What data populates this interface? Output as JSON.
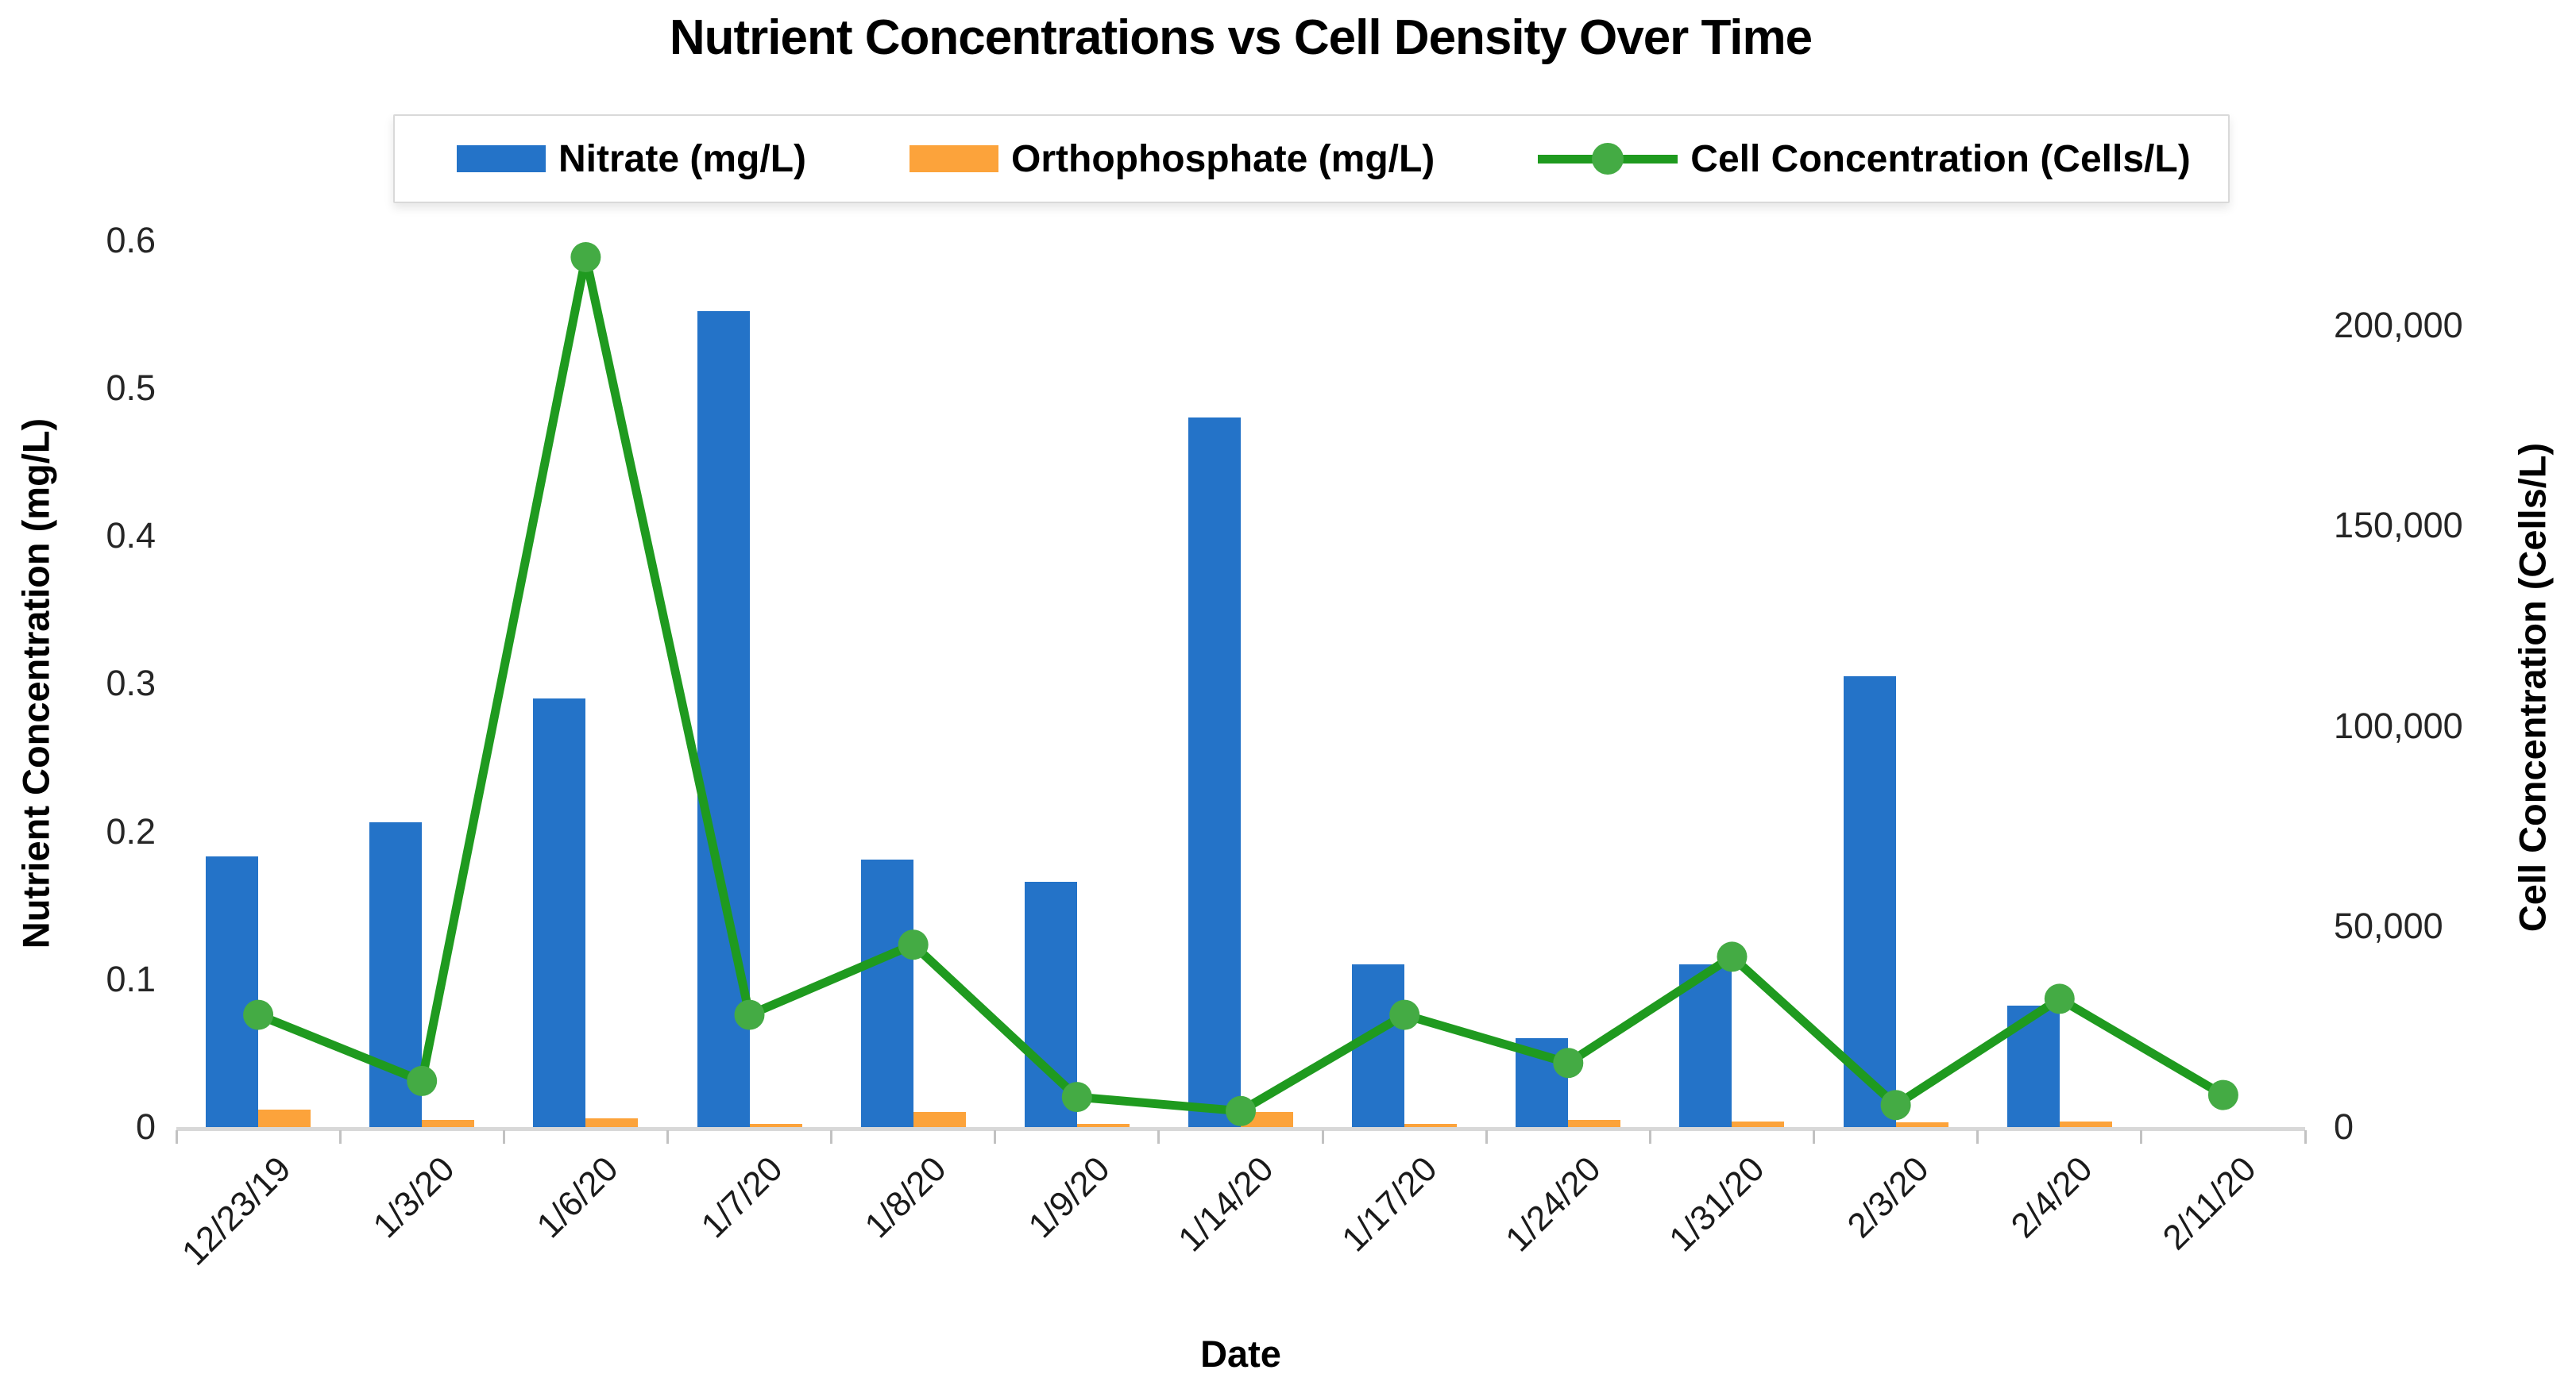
{
  "chart_data": {
    "type": "bar",
    "subtype": "dual-axis-combo-bar-line",
    "title": "Nutrient Concentrations vs Cell Density Over Time",
    "xlabel": "Date",
    "ylabel_left": "Nutrient Concentration (mg/L)",
    "ylabel_right": "Cell Concentration (Cells/L)",
    "categories": [
      "12/23/19",
      "1/3/20",
      "1/6/20",
      "1/7/20",
      "1/8/20",
      "1/9/20",
      "1/14/20",
      "1/17/20",
      "1/24/20",
      "1/31/20",
      "2/3/20",
      "2/4/20",
      "2/11/20"
    ],
    "series": [
      {
        "name": "Nitrate (mg/L)",
        "type": "bar",
        "axis": "left",
        "color": "#2473C8",
        "values": [
          0.183,
          0.206,
          0.29,
          0.552,
          0.181,
          0.166,
          0.48,
          0.11,
          0.06,
          0.11,
          0.305,
          0.082,
          0
        ]
      },
      {
        "name": "Orthophosphate (mg/L)",
        "type": "bar",
        "axis": "left",
        "color": "#FCA33B",
        "values": [
          0.012,
          0.005,
          0.006,
          0.002,
          0.01,
          0.002,
          0.01,
          0.002,
          0.005,
          0.004,
          0.003,
          0.004,
          0
        ]
      },
      {
        "name": "Cell Concentration (Cells/L)",
        "type": "line",
        "axis": "right",
        "color": "#1F9A1F",
        "marker_color": "#44AB44",
        "values": [
          28000,
          11500,
          217000,
          28000,
          45500,
          7500,
          4000,
          28000,
          16000,
          42500,
          5500,
          32000,
          8000
        ]
      }
    ],
    "left_axis": {
      "tick_labels": [
        "0",
        "0.1",
        "0.2",
        "0.3",
        "0.4",
        "0.5",
        "0.6"
      ],
      "tick_values": [
        0,
        0.1,
        0.2,
        0.3,
        0.4,
        0.5,
        0.6
      ],
      "range": [
        0,
        0.6177
      ]
    },
    "right_axis": {
      "tick_labels": [
        "0",
        "50,000",
        "100,000",
        "150,000",
        "200,000"
      ],
      "tick_values": [
        0,
        50000,
        100000,
        150000,
        200000
      ],
      "range": [
        0,
        227700
      ]
    },
    "grid": false,
    "legend_position": "top"
  },
  "colors": {
    "nitrate_bar": "#2473C8",
    "orthophosphate_bar": "#FCA33B",
    "cell_line": "#1F9A1F",
    "cell_marker": "#44AB44",
    "axis_line": "#d8d8d8",
    "tick_mark": "#c2c2c2"
  }
}
